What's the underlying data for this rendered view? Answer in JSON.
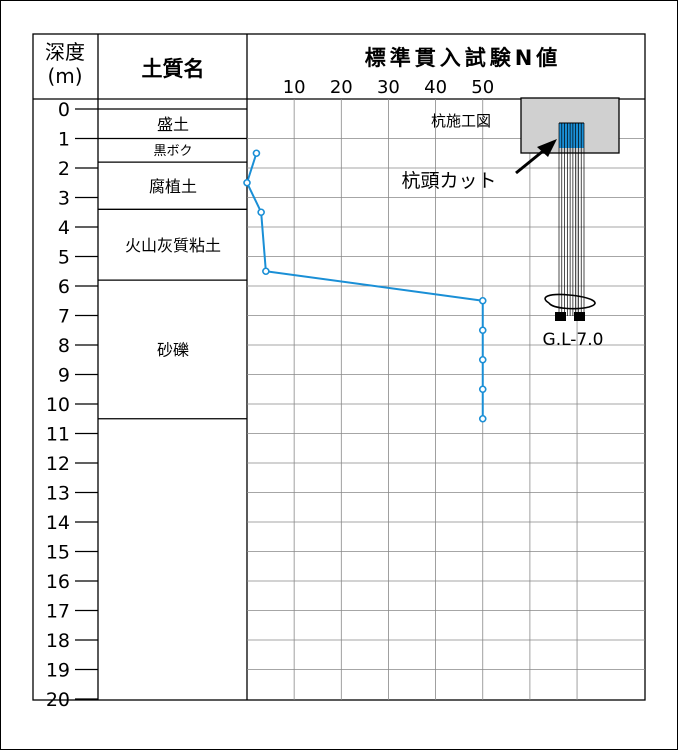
{
  "header": {
    "depth_title_line1": "深度",
    "depth_title_line2": "(m)",
    "soil_title": "土質名",
    "spt_title": "標準貫入試験N値"
  },
  "n_axis": {
    "tick_labels": [
      "10",
      "20",
      "30",
      "40",
      "50"
    ]
  },
  "depth_axis": {
    "labels": [
      "0",
      "1",
      "2",
      "3",
      "4",
      "5",
      "6",
      "7",
      "8",
      "9",
      "10",
      "11",
      "12",
      "13",
      "14",
      "15",
      "16",
      "17",
      "18",
      "19",
      "20"
    ]
  },
  "soil_layers": [
    {
      "name": "盛土",
      "top_m": 0.0,
      "bottom_m": 1.0
    },
    {
      "name": "黒ボク",
      "top_m": 1.0,
      "bottom_m": 1.8
    },
    {
      "name": "腐植土",
      "top_m": 1.8,
      "bottom_m": 3.4
    },
    {
      "name": "火山灰質粘土",
      "top_m": 3.4,
      "bottom_m": 5.8
    },
    {
      "name": "砂礫",
      "top_m": 5.8,
      "bottom_m": 10.5
    },
    {
      "name": "",
      "top_m": 10.5,
      "bottom_m": 20.0
    }
  ],
  "chart_data": {
    "type": "line",
    "title": "標準貫入試験N値",
    "xlabel": "N値",
    "ylabel": "深度(m)",
    "xlim": [
      0,
      80
    ],
    "ylim": [
      0,
      20
    ],
    "y_inverted": true,
    "series": [
      {
        "color": "#1a8fd6",
        "points": [
          {
            "depth": 1.5,
            "n": 2
          },
          {
            "depth": 2.5,
            "n": 0
          },
          {
            "depth": 3.5,
            "n": 3
          },
          {
            "depth": 5.5,
            "n": 4
          },
          {
            "depth": 6.5,
            "n": 50
          },
          {
            "depth": 7.5,
            "n": 50
          },
          {
            "depth": 8.5,
            "n": 50
          },
          {
            "depth": 9.5,
            "n": 50
          },
          {
            "depth": 10.5,
            "n": 50
          }
        ]
      }
    ],
    "grid": true
  },
  "pile_diagram": {
    "title": "杭施工図",
    "cut_label": "杭頭カット",
    "depth_label": "G.L-7.0",
    "pile_color": "#1a8fd6"
  }
}
